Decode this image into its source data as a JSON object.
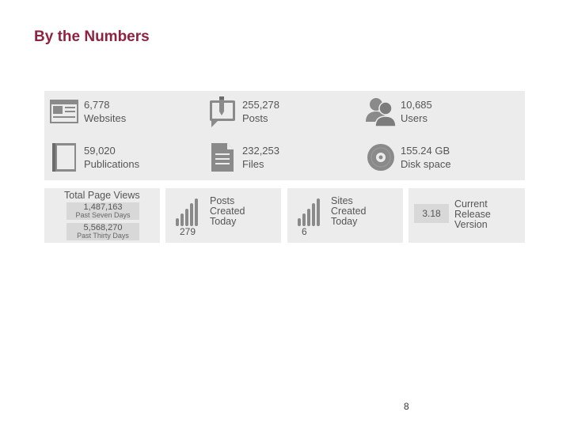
{
  "title": "By the Numbers",
  "stats": {
    "websites": {
      "value": "6,778",
      "label": "Websites",
      "icon": "browser-window-icon"
    },
    "posts": {
      "value": "255,278",
      "label": "Posts",
      "icon": "post-pen-icon"
    },
    "users": {
      "value": "10,685",
      "label": "Users",
      "icon": "users-icon"
    },
    "publications": {
      "value": "59,020",
      "label": "Publications",
      "icon": "book-icon"
    },
    "files": {
      "value": "232,253",
      "label": "Files",
      "icon": "document-icon"
    },
    "disk": {
      "value": "155.24 GB",
      "label": "Disk space",
      "icon": "disc-icon"
    }
  },
  "page_views": {
    "title": "Total Page Views",
    "seven_days": {
      "value": "1,487,163",
      "label": "Past Seven Days"
    },
    "thirty_days": {
      "value": "5,568,270",
      "label": "Past Thirty Days"
    }
  },
  "posts_today": {
    "lines": [
      "Posts",
      "Created",
      "Today"
    ],
    "count": "279",
    "icon": "bar-signal-icon"
  },
  "sites_today": {
    "lines": [
      "Sites",
      "Created",
      "Today"
    ],
    "count": "6",
    "icon": "bar-signal-icon"
  },
  "release": {
    "version": "3.18",
    "lines": [
      "Current",
      "Release",
      "Version"
    ]
  },
  "page_number": "8",
  "colors": {
    "title": "#8e2340",
    "panel": "#ececec",
    "icon": "#8a8a8a",
    "box": "#d8d8d8"
  }
}
